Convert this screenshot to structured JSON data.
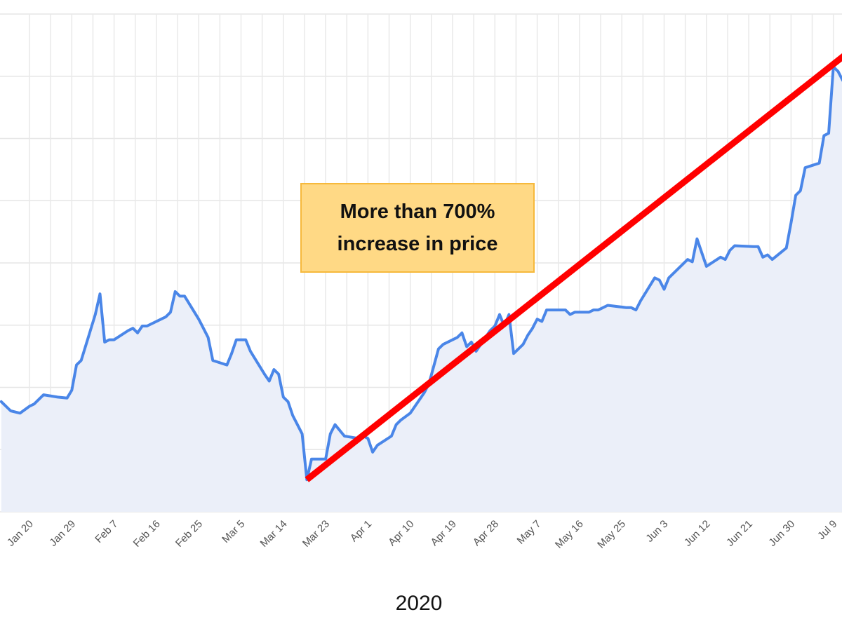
{
  "chart_data": {
    "type": "line",
    "x_tick_labels": [
      "Jan 20",
      "Jan 29",
      "Feb 7",
      "Feb 16",
      "Feb 25",
      "Mar 5",
      "Mar 14",
      "Mar 23",
      "Apr 1",
      "Apr 10",
      "Apr 19",
      "Apr 28",
      "May 7",
      "May 16",
      "May 25",
      "Jun 3",
      "Jun 12",
      "Jun 21",
      "Jun 30",
      "Jul 9"
    ],
    "x_axis_title": "2020",
    "y_axis": {
      "tick_labels_visible": false,
      "gridline_count": 8
    },
    "grid": true,
    "series": [
      {
        "color": "#4a86e8",
        "fill": "#ebeff9",
        "points": [
          [
            "Jan 14",
            2.4
          ],
          [
            "Jan 16",
            2.2
          ],
          [
            "Jan 18",
            2.15
          ],
          [
            "Jan 20",
            2.3
          ],
          [
            "Jan 21",
            2.35
          ],
          [
            "Jan 23",
            2.55
          ],
          [
            "Jan 26",
            2.5
          ],
          [
            "Jan 28",
            2.48
          ],
          [
            "Jan 29",
            2.65
          ],
          [
            "Jan 30",
            3.2
          ],
          [
            "Jan 31",
            3.3
          ],
          [
            "Feb 3",
            4.3
          ],
          [
            "Feb 4",
            4.75
          ],
          [
            "Feb 5",
            3.7
          ],
          [
            "Feb 6",
            3.75
          ],
          [
            "Feb 7",
            3.75
          ],
          [
            "Feb 10",
            3.95
          ],
          [
            "Feb 11",
            4.0
          ],
          [
            "Feb 12",
            3.9
          ],
          [
            "Feb 13",
            4.05
          ],
          [
            "Feb 14",
            4.05
          ],
          [
            "Feb 18",
            4.25
          ],
          [
            "Feb 19",
            4.35
          ],
          [
            "Feb 20",
            4.8
          ],
          [
            "Feb 21",
            4.7
          ],
          [
            "Feb 22",
            4.7
          ],
          [
            "Feb 25",
            4.2
          ],
          [
            "Feb 26",
            4.0
          ],
          [
            "Feb 27",
            3.8
          ],
          [
            "Feb 28",
            3.3
          ],
          [
            "Mar 2",
            3.2
          ],
          [
            "Mar 3",
            3.45
          ],
          [
            "Mar 4",
            3.75
          ],
          [
            "Mar 5",
            3.75
          ],
          [
            "Mar 6",
            3.75
          ],
          [
            "Mar 7",
            3.5
          ],
          [
            "Mar 10",
            3.0
          ],
          [
            "Mar 11",
            2.85
          ],
          [
            "Mar 12",
            3.1
          ],
          [
            "Mar 13",
            3.0
          ],
          [
            "Mar 14",
            2.5
          ],
          [
            "Mar 15",
            2.4
          ],
          [
            "Mar 16",
            2.1
          ],
          [
            "Mar 17",
            1.9
          ],
          [
            "Mar 18",
            1.7
          ],
          [
            "Mar 19",
            0.7
          ],
          [
            "Mar 20",
            1.15
          ],
          [
            "Mar 21",
            1.15
          ],
          [
            "Mar 23",
            1.15
          ],
          [
            "Mar 24",
            1.7
          ],
          [
            "Mar 25",
            1.9
          ],
          [
            "Mar 27",
            1.65
          ],
          [
            "Mar 30",
            1.6
          ],
          [
            "Mar 31",
            1.65
          ],
          [
            "Apr 1",
            1.6
          ],
          [
            "Apr 2",
            1.3
          ],
          [
            "Apr 3",
            1.45
          ],
          [
            "Apr 6",
            1.65
          ],
          [
            "Apr 7",
            1.9
          ],
          [
            "Apr 8",
            2.0
          ],
          [
            "Apr 10",
            2.15
          ],
          [
            "Apr 13",
            2.6
          ],
          [
            "Apr 14",
            2.8
          ],
          [
            "Apr 16",
            3.55
          ],
          [
            "Apr 17",
            3.65
          ],
          [
            "Apr 20",
            3.8
          ],
          [
            "Apr 21",
            3.9
          ],
          [
            "Apr 22",
            3.6
          ],
          [
            "Apr 23",
            3.7
          ],
          [
            "Apr 24",
            3.5
          ],
          [
            "Apr 27",
            3.95
          ],
          [
            "Apr 28",
            4.05
          ],
          [
            "Apr 29",
            4.3
          ],
          [
            "Apr 30",
            4.05
          ],
          [
            "May 1",
            4.3
          ],
          [
            "May 2",
            3.45
          ],
          [
            "May 4",
            3.65
          ],
          [
            "May 5",
            3.85
          ],
          [
            "May 6",
            4.0
          ],
          [
            "May 7",
            4.2
          ],
          [
            "May 8",
            4.15
          ],
          [
            "May 9",
            4.4
          ],
          [
            "May 13",
            4.4
          ],
          [
            "May 14",
            4.3
          ],
          [
            "May 15",
            4.35
          ],
          [
            "May 18",
            4.35
          ],
          [
            "May 19",
            4.4
          ],
          [
            "May 20",
            4.4
          ],
          [
            "May 21",
            4.45
          ],
          [
            "May 22",
            4.5
          ],
          [
            "May 26",
            4.45
          ],
          [
            "May 27",
            4.45
          ],
          [
            "May 28",
            4.4
          ],
          [
            "May 29",
            4.6
          ],
          [
            "Jun 1",
            5.1
          ],
          [
            "Jun 2",
            5.05
          ],
          [
            "Jun 3",
            4.85
          ],
          [
            "Jun 4",
            5.1
          ],
          [
            "Jun 8",
            5.5
          ],
          [
            "Jun 9",
            5.45
          ],
          [
            "Jun 10",
            5.95
          ],
          [
            "Jun 11",
            5.65
          ],
          [
            "Jun 12",
            5.35
          ],
          [
            "Jun 15",
            5.55
          ],
          [
            "Jun 16",
            5.5
          ],
          [
            "Jun 17",
            5.7
          ],
          [
            "Jun 18",
            5.8
          ],
          [
            "Jun 22",
            5.78
          ],
          [
            "Jun 23",
            5.78
          ],
          [
            "Jun 24",
            5.55
          ],
          [
            "Jun 25",
            5.6
          ],
          [
            "Jun 26",
            5.5
          ],
          [
            "Jun 29",
            5.75
          ],
          [
            "Jun 30",
            6.3
          ],
          [
            "Jul 1",
            6.9
          ],
          [
            "Jul 2",
            7.0
          ],
          [
            "Jul 3",
            7.5
          ],
          [
            "Jul 6",
            7.6
          ],
          [
            "Jul 7",
            8.2
          ],
          [
            "Jul 8",
            8.25
          ],
          [
            "Jul 9",
            9.7
          ],
          [
            "Jul 10",
            9.6
          ],
          [
            "Jul 11",
            9.4
          ]
        ]
      }
    ],
    "trend_line": {
      "color": "#ff0000",
      "from": [
        "Mar 19",
        0.7
      ],
      "to": [
        "Jul 12",
        10.0
      ]
    },
    "annotation": {
      "lines": [
        "More than 700%",
        "increase in price"
      ],
      "background": "#ffd985",
      "border": "#f6b93c"
    }
  }
}
